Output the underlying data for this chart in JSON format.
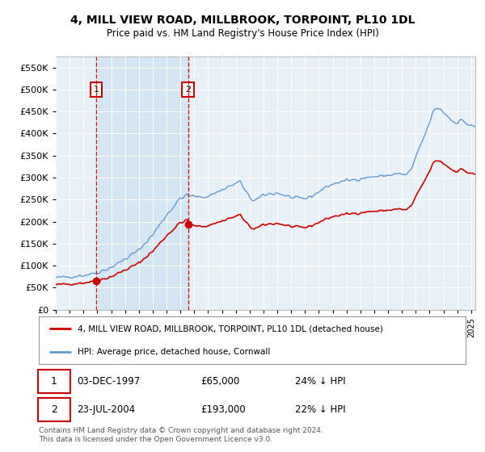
{
  "title": "4, MILL VIEW ROAD, MILLBROOK, TORPOINT, PL10 1DL",
  "subtitle": "Price paid vs. HM Land Registry's House Price Index (HPI)",
  "ytick_values": [
    0,
    50000,
    100000,
    150000,
    200000,
    250000,
    300000,
    350000,
    400000,
    450000,
    500000,
    550000
  ],
  "ylim": [
    0,
    575000
  ],
  "xlim_start": 1995.0,
  "xlim_end": 2025.3,
  "sale1_x": 1997.92,
  "sale1_y": 65000,
  "sale1_label": "1",
  "sale1_date": "03-DEC-1997",
  "sale1_price": "£65,000",
  "sale1_hpi": "24% ↓ HPI",
  "sale2_x": 2004.55,
  "sale2_y": 193000,
  "sale2_label": "2",
  "sale2_date": "23-JUL-2004",
  "sale2_price": "£193,000",
  "sale2_hpi": "22% ↓ HPI",
  "red_line_color": "#cc0000",
  "blue_line_color": "#6699cc",
  "vline_color": "#cc0000",
  "background_color": "#ffffff",
  "plot_bg_color": "#e8f0f8",
  "shade_color": "#d0e4f4",
  "grid_color": "#ffffff",
  "legend_label_red": "4, MILL VIEW ROAD, MILLBROOK, TORPOINT, PL10 1DL (detached house)",
  "legend_label_blue": "HPI: Average price, detached house, Cornwall",
  "footer": "Contains HM Land Registry data © Crown copyright and database right 2024.\nThis data is licensed under the Open Government Licence v3.0."
}
